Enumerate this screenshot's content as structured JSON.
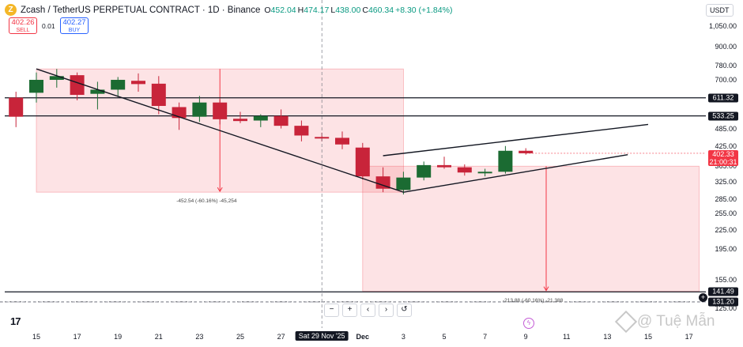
{
  "header": {
    "logo_letter": "Z",
    "title": "Zcash / TetherUS PERPETUAL CONTRACT · 1D · Binance",
    "ohlc": [
      {
        "k": "O",
        "v": "452.04"
      },
      {
        "k": "H",
        "v": "474.17"
      },
      {
        "k": "L",
        "v": "438.00"
      },
      {
        "k": "C",
        "v": "460.34"
      },
      {
        "k": "",
        "v": "+8.30 (+1.84%)"
      }
    ]
  },
  "trade": {
    "sell_price": "402.26",
    "sell_label": "SELL",
    "spread": "0.01",
    "buy_price": "402.27",
    "buy_label": "BUY"
  },
  "currency": "USDT",
  "y_axis": {
    "labels": [
      {
        "text": "1,050.00",
        "value": 1050
      },
      {
        "text": "900.00",
        "value": 900
      },
      {
        "text": "780.00",
        "value": 780
      },
      {
        "text": "700.00",
        "value": 700
      },
      {
        "text": "485.00",
        "value": 485
      },
      {
        "text": "425.00",
        "value": 425
      },
      {
        "text": "365.00",
        "value": 365
      },
      {
        "text": "325.00",
        "value": 325
      },
      {
        "text": "285.00",
        "value": 285
      },
      {
        "text": "255.00",
        "value": 255
      },
      {
        "text": "225.00",
        "value": 225
      },
      {
        "text": "195.00",
        "value": 195
      },
      {
        "text": "155.00",
        "value": 155
      },
      {
        "text": "125.00",
        "value": 125
      }
    ]
  },
  "price_tags": [
    {
      "text": "611.32",
      "value": 611.32,
      "style": "black"
    },
    {
      "text": "533.25",
      "value": 533.25,
      "style": "black"
    },
    {
      "text": "141.49",
      "value": 141.49,
      "style": "black"
    },
    {
      "text": "131.20",
      "value": 131.2,
      "style": "black"
    }
  ],
  "current_price": {
    "price": "402.33",
    "countdown": "21:00:31",
    "value": 402.33
  },
  "x_axis": [
    {
      "text": "15",
      "day": 0
    },
    {
      "text": "17",
      "day": 2
    },
    {
      "text": "19",
      "day": 4
    },
    {
      "text": "21",
      "day": 6
    },
    {
      "text": "23",
      "day": 8
    },
    {
      "text": "25",
      "day": 10
    },
    {
      "text": "27",
      "day": 12
    },
    {
      "text": "Sat 29 Nov '25",
      "day": 14,
      "highlight": true
    },
    {
      "text": "Dec",
      "day": 16
    },
    {
      "text": "3",
      "day": 18
    },
    {
      "text": "5",
      "day": 20
    },
    {
      "text": "7",
      "day": 22
    },
    {
      "text": "9",
      "day": 24
    },
    {
      "text": "11",
      "day": 26
    },
    {
      "text": "13",
      "day": 28
    },
    {
      "text": "15",
      "day": 30
    },
    {
      "text": "17",
      "day": 32
    }
  ],
  "chart_data": {
    "type": "candlestick",
    "y_scale": "log",
    "ylim": [
      115,
      1150
    ],
    "candles": [
      {
        "day": -1,
        "open": 612,
        "high": 640,
        "low": 490,
        "close": 530
      },
      {
        "day": 0,
        "open": 635,
        "high": 740,
        "low": 590,
        "close": 700
      },
      {
        "day": 1,
        "open": 700,
        "high": 760,
        "low": 660,
        "close": 720
      },
      {
        "day": 2,
        "open": 725,
        "high": 740,
        "low": 600,
        "close": 625
      },
      {
        "day": 3,
        "open": 630,
        "high": 690,
        "low": 560,
        "close": 650
      },
      {
        "day": 4,
        "open": 650,
        "high": 715,
        "low": 615,
        "close": 700
      },
      {
        "day": 5,
        "open": 695,
        "high": 735,
        "low": 640,
        "close": 678
      },
      {
        "day": 6,
        "open": 680,
        "high": 720,
        "low": 540,
        "close": 575
      },
      {
        "day": 7,
        "open": 570,
        "high": 590,
        "low": 480,
        "close": 525
      },
      {
        "day": 8,
        "open": 530,
        "high": 620,
        "low": 510,
        "close": 590
      },
      {
        "day": 9,
        "open": 590,
        "high": 605,
        "low": 500,
        "close": 520
      },
      {
        "day": 10,
        "open": 522,
        "high": 550,
        "low": 505,
        "close": 513
      },
      {
        "day": 11,
        "open": 515,
        "high": 540,
        "low": 490,
        "close": 533
      },
      {
        "day": 12,
        "open": 533,
        "high": 560,
        "low": 485,
        "close": 495
      },
      {
        "day": 13,
        "open": 495,
        "high": 515,
        "low": 440,
        "close": 460
      },
      {
        "day": 14,
        "open": 455,
        "high": 470,
        "low": 440,
        "close": 452
      },
      {
        "day": 15,
        "open": 452,
        "high": 474,
        "low": 415,
        "close": 430
      },
      {
        "day": 16,
        "open": 420,
        "high": 435,
        "low": 330,
        "close": 338
      },
      {
        "day": 17,
        "open": 338,
        "high": 362,
        "low": 300,
        "close": 308
      },
      {
        "day": 18,
        "open": 305,
        "high": 350,
        "low": 295,
        "close": 335
      },
      {
        "day": 19,
        "open": 335,
        "high": 378,
        "low": 328,
        "close": 368
      },
      {
        "day": 20,
        "open": 368,
        "high": 392,
        "low": 358,
        "close": 362
      },
      {
        "day": 21,
        "open": 362,
        "high": 370,
        "low": 340,
        "close": 348
      },
      {
        "day": 22,
        "open": 350,
        "high": 358,
        "low": 338,
        "close": 350
      },
      {
        "day": 23,
        "open": 350,
        "high": 425,
        "low": 345,
        "close": 410
      },
      {
        "day": 24,
        "open": 410,
        "high": 418,
        "low": 398,
        "close": 402.33
      }
    ],
    "trend_lines": [
      {
        "from": {
          "day": 0,
          "value": 760
        },
        "to": {
          "day": 18,
          "value": 300
        }
      },
      {
        "from": {
          "day": 17,
          "value": 395
        },
        "to": {
          "day": 30,
          "value": 500
        }
      },
      {
        "from": {
          "day": 18,
          "value": 300
        },
        "to": {
          "day": 29,
          "value": 398
        }
      }
    ],
    "horizontal_lines": [
      611.32,
      533.25,
      141.49
    ],
    "dashed_lines": [
      131.2
    ],
    "price_ranges": [
      {
        "day_from": 0,
        "day_to": 18,
        "value_top": 760,
        "value_bottom": 300,
        "arrow_day": 9,
        "label": "-452.54 (-60.16%) -45,254",
        "label_day": 9
      },
      {
        "day_from": 16,
        "day_to": 32.5,
        "value_top": 365,
        "value_bottom": 142,
        "arrow_day": 25,
        "label": "-213.88 (-60.16%) -21,388",
        "label_day": 25
      }
    ]
  },
  "nav": {
    "zoom_out": "−",
    "zoom_in": "+",
    "scroll_left": "‹",
    "scroll_right": "›",
    "reset": "↺"
  },
  "tv_logo": "17",
  "watermark": "@ Tuệ Mẫn"
}
